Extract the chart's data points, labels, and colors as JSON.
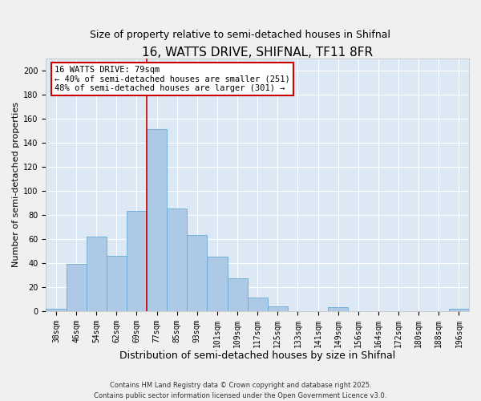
{
  "title": "16, WATTS DRIVE, SHIFNAL, TF11 8FR",
  "subtitle": "Size of property relative to semi-detached houses in Shifnal",
  "xlabel": "Distribution of semi-detached houses by size in Shifnal",
  "ylabel": "Number of semi-detached properties",
  "bin_labels": [
    "38sqm",
    "46sqm",
    "54sqm",
    "62sqm",
    "69sqm",
    "77sqm",
    "85sqm",
    "93sqm",
    "101sqm",
    "109sqm",
    "117sqm",
    "125sqm",
    "133sqm",
    "141sqm",
    "149sqm",
    "156sqm",
    "164sqm",
    "172sqm",
    "180sqm",
    "188sqm",
    "196sqm"
  ],
  "bin_values": [
    2,
    39,
    62,
    46,
    83,
    151,
    85,
    63,
    45,
    27,
    11,
    4,
    0,
    0,
    3,
    0,
    0,
    0,
    0,
    0,
    2
  ],
  "bar_color": "#aec9e6",
  "bar_edge_color": "#6aaad4",
  "vline_x_index": 5,
  "vline_color": "#cc0000",
  "annotation_box_text": "16 WATTS DRIVE: 79sqm\n← 40% of semi-detached houses are smaller (251)\n48% of semi-detached houses are larger (301) →",
  "annotation_box_color": "#cc0000",
  "ylim": [
    0,
    210
  ],
  "yticks": [
    0,
    20,
    40,
    60,
    80,
    100,
    120,
    140,
    160,
    180,
    200
  ],
  "bg_color": "#dce9f5",
  "grid_color": "#ffffff",
  "fig_bg_color": "#f0f0f0",
  "footer_line1": "Contains HM Land Registry data © Crown copyright and database right 2025.",
  "footer_line2": "Contains public sector information licensed under the Open Government Licence v3.0.",
  "title_fontsize": 11,
  "subtitle_fontsize": 9,
  "xlabel_fontsize": 9,
  "ylabel_fontsize": 8,
  "tick_fontsize": 7,
  "annotation_fontsize": 7.5,
  "footer_fontsize": 6
}
